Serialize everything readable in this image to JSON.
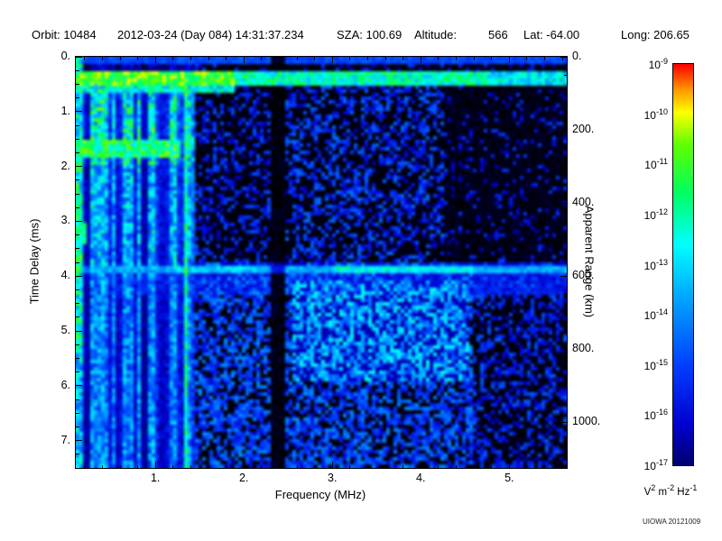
{
  "header": {
    "fields": [
      "Orbit: 10484",
      "2012-03-24 (Day 084) 14:31:37.234",
      "SZA: 100.69",
      "Altitude:",
      "566",
      "Lat: -64.00",
      "Long: 206.65"
    ]
  },
  "chart_data": {
    "type": "heatmap",
    "xlabel": "Frequency (MHz)",
    "ylabel_left": "Time Delay (ms)",
    "ylabel_right": "Apparent Range (km)",
    "x_range_mhz": [
      0.1,
      5.65
    ],
    "x_minor_step": 0.2,
    "x_ticks": [
      {
        "value": 1,
        "label": "1."
      },
      {
        "value": 2,
        "label": "2."
      },
      {
        "value": 3,
        "label": "3."
      },
      {
        "value": 4,
        "label": "4."
      },
      {
        "value": 5,
        "label": "5."
      }
    ],
    "y_range_ms": [
      0,
      7.5
    ],
    "y_minor_step": 0.25,
    "y_ticks": [
      {
        "value": 0,
        "label": "0."
      },
      {
        "value": 1,
        "label": "1."
      },
      {
        "value": 2,
        "label": "2."
      },
      {
        "value": 3,
        "label": "3."
      },
      {
        "value": 4,
        "label": "4."
      },
      {
        "value": 5,
        "label": "5."
      },
      {
        "value": 6,
        "label": "6."
      },
      {
        "value": 7,
        "label": "7."
      }
    ],
    "right_axis_km_per_ms": 150,
    "right_minor_step": 50,
    "right_ticks": [
      {
        "value": 0,
        "label": "0."
      },
      {
        "value": 200,
        "label": "200."
      },
      {
        "value": 400,
        "label": "400."
      },
      {
        "value": 600,
        "label": "600."
      },
      {
        "value": 800,
        "label": "800."
      },
      {
        "value": 1000,
        "label": "1000."
      }
    ],
    "colorbar": {
      "scale": "log",
      "tick_labels": [
        {
          "base": "10",
          "exp": "-9"
        },
        {
          "base": "10",
          "exp": "-10"
        },
        {
          "base": "10",
          "exp": "-11"
        },
        {
          "base": "10",
          "exp": "-12"
        },
        {
          "base": "10",
          "exp": "-13"
        },
        {
          "base": "10",
          "exp": "-14"
        },
        {
          "base": "10",
          "exp": "-15"
        },
        {
          "base": "10",
          "exp": "-16"
        },
        {
          "base": "10",
          "exp": "-17"
        }
      ],
      "units_parts": [
        {
          "base": "V",
          "exp": "2"
        },
        {
          "base": "m",
          "exp": "-2"
        },
        {
          "base": "Hz",
          "exp": "-1"
        }
      ],
      "colormap_stops": [
        {
          "pos": 0.0,
          "color": "#000070"
        },
        {
          "pos": 0.1,
          "color": "#0000d0"
        },
        {
          "pos": 0.25,
          "color": "#0040ff"
        },
        {
          "pos": 0.42,
          "color": "#00a8ff"
        },
        {
          "pos": 0.55,
          "color": "#00ffff"
        },
        {
          "pos": 0.68,
          "color": "#00ff60"
        },
        {
          "pos": 0.8,
          "color": "#60ff00"
        },
        {
          "pos": 0.88,
          "color": "#ffff00"
        },
        {
          "pos": 0.94,
          "color": "#ff9000"
        },
        {
          "pos": 1.0,
          "color": "#ff0000"
        }
      ]
    },
    "features": {
      "noise_seed": 20121009,
      "top_band_ms": [
        0.28,
        0.5
      ],
      "echo_line_ms": 3.88,
      "echo_apparent_range_km": 582,
      "low_freq_noise_max_mhz": 1.45,
      "bright_vertical_line_mhz": 1.35,
      "interference_gap_mhz": [
        2.3,
        2.46
      ],
      "diffuse_noise_start_ms": 3.95,
      "description": "Black background with blue speckle noise; broadband vertical interference stripes below 1.45 MHz; bright horizontal transmitter band near 0.35 ms; bright echo trace near 3.88 ms (~582 km apparent range) across all frequencies; dark vertical interference gap near 2.35 MHz; diffuse blue noise below the echo trace."
    },
    "credit": "UIOWA 20121009"
  }
}
